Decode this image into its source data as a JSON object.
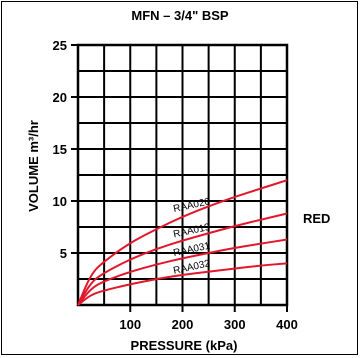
{
  "chart_data": {
    "type": "line",
    "title": "MFN – 3/4\" BSP",
    "xlabel": "PRESSURE (kPa)",
    "ylabel": "VOLUME m³/hr",
    "xlim": [
      0,
      400
    ],
    "ylim": [
      0,
      25
    ],
    "x_ticks": [
      100,
      200,
      300,
      400
    ],
    "y_ticks": [
      5,
      10,
      15,
      20,
      25
    ],
    "grid": true,
    "series_group_label": "RED",
    "line_color": "#e2172b",
    "series": [
      {
        "name": "RAA020",
        "x": [
          0,
          25,
          50,
          100,
          150,
          200,
          250,
          300,
          350,
          400
        ],
        "y": [
          0,
          3.0,
          4.2,
          6.0,
          7.3,
          8.5,
          9.5,
          10.4,
          11.2,
          12.0
        ]
      },
      {
        "name": "RAA019",
        "x": [
          0,
          25,
          50,
          100,
          150,
          200,
          250,
          300,
          350,
          400
        ],
        "y": [
          0,
          2.2,
          3.1,
          4.4,
          5.4,
          6.2,
          6.9,
          7.6,
          8.2,
          8.8
        ]
      },
      {
        "name": "RAA031",
        "x": [
          0,
          25,
          50,
          100,
          150,
          200,
          250,
          300,
          350,
          400
        ],
        "y": [
          0,
          1.6,
          2.3,
          3.2,
          3.9,
          4.5,
          5.0,
          5.5,
          5.9,
          6.3
        ]
      },
      {
        "name": "RAA032",
        "x": [
          0,
          25,
          50,
          100,
          150,
          200,
          250,
          300,
          350,
          400
        ],
        "y": [
          0,
          1.0,
          1.4,
          2.0,
          2.5,
          2.9,
          3.2,
          3.5,
          3.8,
          4.0
        ]
      }
    ]
  }
}
